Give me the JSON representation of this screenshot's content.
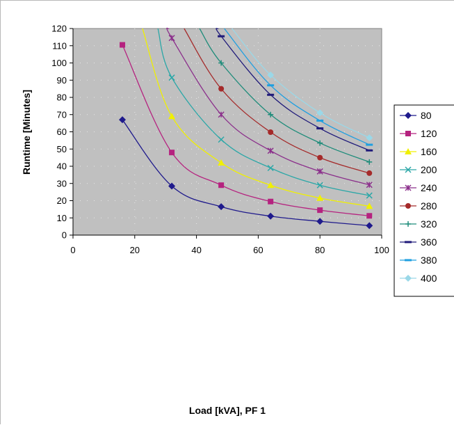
{
  "chart_data": {
    "type": "line",
    "title": "",
    "xlabel": "Load [kVA], PF 1",
    "ylabel": "Runtime [Minutes]",
    "xlim": [
      0,
      100
    ],
    "ylim": [
      0,
      120
    ],
    "xticks": [
      0,
      20,
      40,
      60,
      80,
      100
    ],
    "yticks": [
      0,
      10,
      20,
      30,
      40,
      50,
      60,
      70,
      80,
      90,
      100,
      110,
      120
    ],
    "grid": "dotted",
    "plot_background": "#c0c0c0",
    "legend_position": "right",
    "series": [
      {
        "name": "80",
        "color": "#1f1a8c",
        "marker": "diamond",
        "points": [
          [
            16,
            67
          ],
          [
            32,
            28.5
          ],
          [
            48,
            16.5
          ],
          [
            64,
            11
          ],
          [
            80,
            8
          ],
          [
            96,
            5.5
          ]
        ]
      },
      {
        "name": "120",
        "color": "#b5227f",
        "marker": "square",
        "points": [
          [
            16,
            110.5
          ],
          [
            32,
            48
          ],
          [
            48,
            29
          ],
          [
            64,
            19.5
          ],
          [
            80,
            14.5
          ],
          [
            96,
            11.2
          ]
        ]
      },
      {
        "name": "160",
        "color": "#f0f000",
        "marker": "triangle",
        "points": [
          [
            22.5,
            120
          ],
          [
            32,
            69
          ],
          [
            48,
            42
          ],
          [
            64,
            29
          ],
          [
            80,
            21.5
          ],
          [
            96,
            16.8
          ]
        ]
      },
      {
        "name": "200",
        "color": "#2aa7a7",
        "marker": "x",
        "points": [
          [
            27.5,
            120
          ],
          [
            32,
            91.5
          ],
          [
            48,
            55.5
          ],
          [
            64,
            39
          ],
          [
            80,
            29
          ],
          [
            96,
            23
          ]
        ]
      },
      {
        "name": "240",
        "color": "#8b2f8b",
        "marker": "star",
        "points": [
          [
            31,
            120
          ],
          [
            32,
            114.5
          ],
          [
            48,
            70
          ],
          [
            64,
            49
          ],
          [
            80,
            37
          ],
          [
            96,
            29.2
          ]
        ]
      },
      {
        "name": "280",
        "color": "#a52a2a",
        "marker": "circle",
        "points": [
          [
            36,
            120
          ],
          [
            48,
            85
          ],
          [
            64,
            59.8
          ],
          [
            80,
            45
          ],
          [
            96,
            36
          ]
        ]
      },
      {
        "name": "320",
        "color": "#1e8c7a",
        "marker": "plus",
        "points": [
          [
            41,
            120
          ],
          [
            48,
            100
          ],
          [
            64,
            70
          ],
          [
            80,
            53.5
          ],
          [
            96,
            42.5
          ]
        ]
      },
      {
        "name": "360",
        "color": "#1f1a7a",
        "marker": "dash",
        "points": [
          [
            47,
            120
          ],
          [
            48,
            115.5
          ],
          [
            64,
            81.5
          ],
          [
            80,
            62
          ],
          [
            96,
            49.2
          ]
        ]
      },
      {
        "name": "380",
        "color": "#1f9fe0",
        "marker": "dash",
        "points": [
          [
            49,
            120
          ],
          [
            64,
            87
          ],
          [
            80,
            66.5
          ],
          [
            96,
            52.5
          ]
        ]
      },
      {
        "name": "400",
        "color": "#9ad8e8",
        "marker": "diamond",
        "points": [
          [
            51.5,
            120
          ],
          [
            64,
            93
          ],
          [
            80,
            71
          ],
          [
            96,
            56.5
          ]
        ]
      }
    ]
  }
}
